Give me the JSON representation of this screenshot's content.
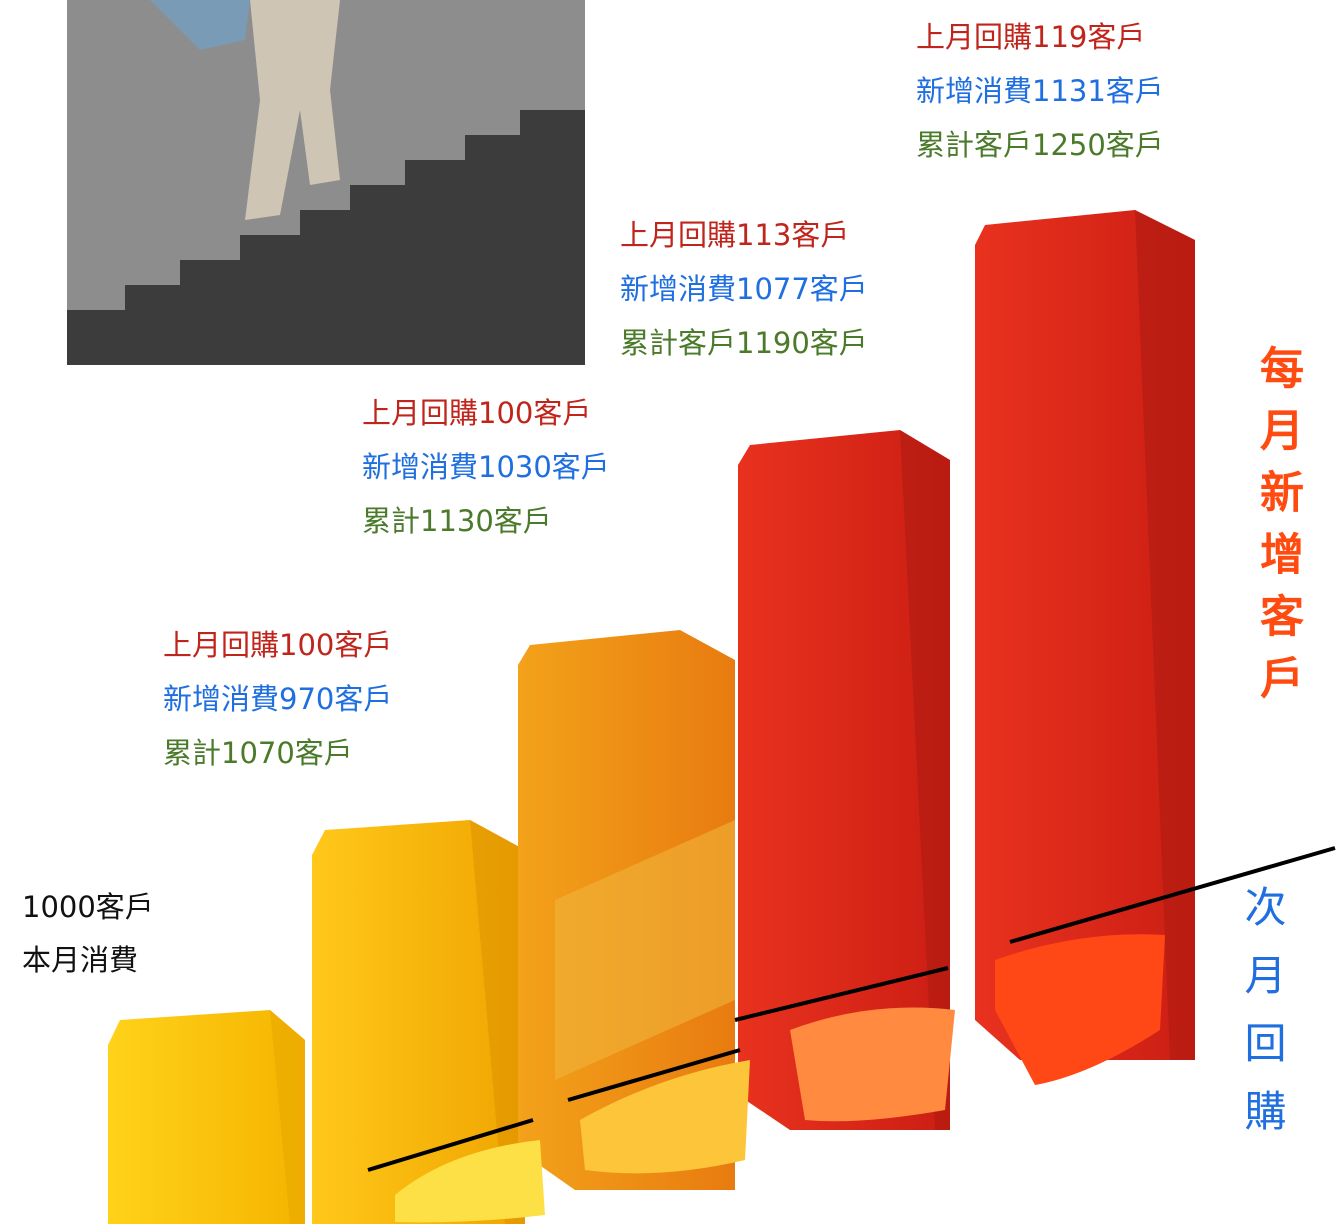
{
  "base": {
    "line1": "1000客戶",
    "line2": "本月消費"
  },
  "months": [
    {
      "repurchase": "上月回購100客戶",
      "new": "新增消費970客戶",
      "total": "累計1070客戶"
    },
    {
      "repurchase": "上月回購100客戶",
      "new": "新增消費1030客戶",
      "total": "累計1130客戶"
    },
    {
      "repurchase": "上月回購113客戶",
      "new": "新增消費1077客戶",
      "total": "累計客戶1190客戶"
    },
    {
      "repurchase": "上月回購119客戶",
      "new": "新增消費1131客戶",
      "total": "累計客戶1250客戶"
    }
  ],
  "side_label": "每月新增客戶",
  "bottom_label": "次月回購"
}
